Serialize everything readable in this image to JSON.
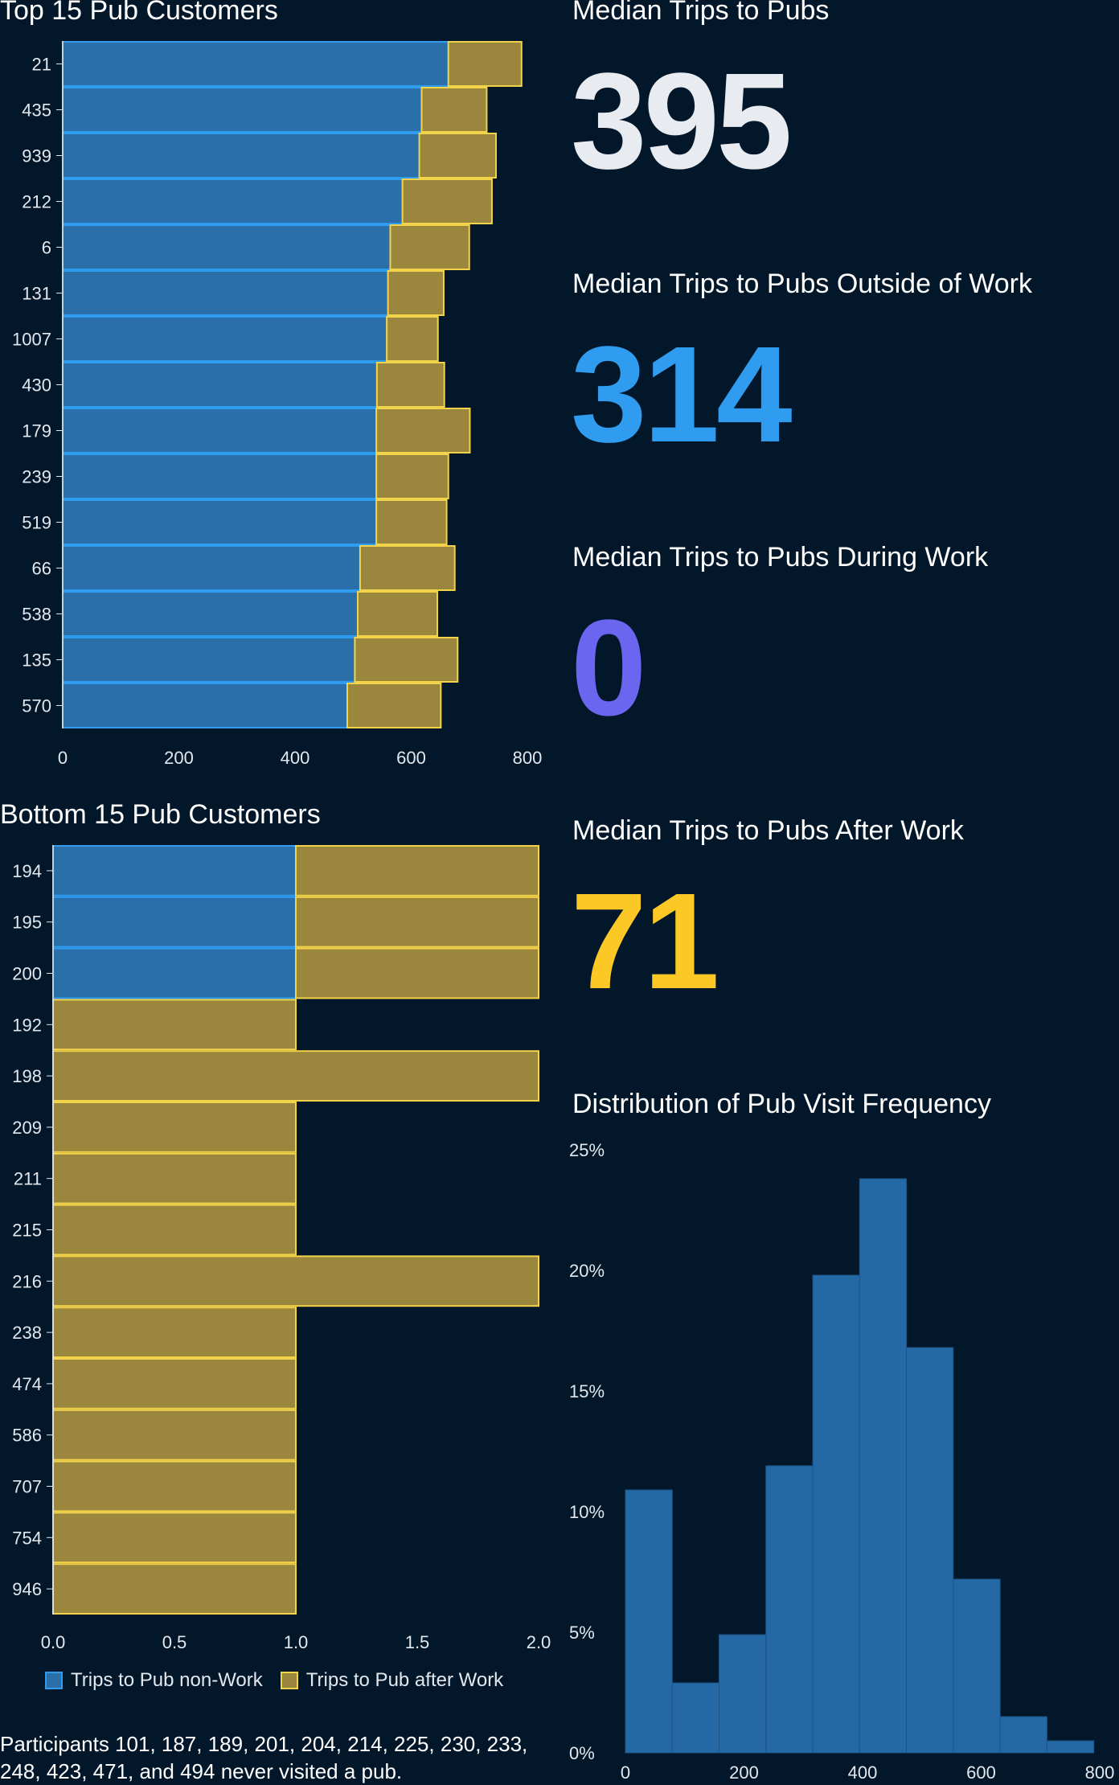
{
  "top_title": "Top 15 Pub Customers",
  "bottom_title": "Bottom 15 Pub Customers",
  "stats": [
    {
      "label": "Median Trips to Pubs",
      "value": "395",
      "color": "#e8ebef"
    },
    {
      "label": "Median Trips to Pubs Outside of Work",
      "value": "314",
      "color": "#2f9cf0"
    },
    {
      "label": "Median Trips to Pubs During Work",
      "value": "0",
      "color": "#6a66f0"
    },
    {
      "label": "Median Trips to Pubs After Work",
      "value": "71",
      "color": "#fcc825"
    }
  ],
  "hist_title": "Distribution of Pub Visit Frequency",
  "legend": {
    "nonwork": "Trips to Pub non-Work",
    "afterwork": "Trips to Pub after Work"
  },
  "note": "Participants 101, 187, 189, 201, 204, 214, 225, 230, 233, 248, 423, 471, and 494 never visited a pub.",
  "colors": {
    "blue": "#2a6faa",
    "blue_edge": "#2f9cf0",
    "gold": "#9a863d",
    "gold_edge": "#f2d34a",
    "hist": "#2469a5"
  },
  "chart_data": [
    {
      "type": "bar",
      "orientation": "horizontal",
      "stacked": true,
      "title": "Top 15 Pub Customers",
      "categories": [
        "21",
        "435",
        "939",
        "212",
        "6",
        "131",
        "1007",
        "430",
        "179",
        "239",
        "519",
        "66",
        "538",
        "135",
        "570"
      ],
      "series": [
        {
          "name": "Trips to Pub non-Work",
          "values": [
            664,
            618,
            614,
            585,
            564,
            560,
            558,
            541,
            540,
            540,
            540,
            512,
            508,
            503,
            490
          ]
        },
        {
          "name": "Trips to Pub after Work",
          "values": [
            126,
            112,
            132,
            154,
            136,
            96,
            88,
            116,
            161,
            124,
            121,
            163,
            137,
            177,
            161
          ]
        }
      ],
      "xlim": [
        0,
        800
      ],
      "xticks": [
        0,
        200,
        400,
        600,
        800
      ]
    },
    {
      "type": "bar",
      "orientation": "horizontal",
      "stacked": true,
      "title": "Bottom 15 Pub Customers",
      "categories": [
        "194",
        "195",
        "200",
        "192",
        "198",
        "209",
        "211",
        "215",
        "216",
        "238",
        "474",
        "586",
        "707",
        "754",
        "946"
      ],
      "series": [
        {
          "name": "Trips to Pub non-Work",
          "values": [
            1,
            1,
            1,
            0,
            0,
            0,
            0,
            0,
            0,
            0,
            0,
            0,
            0,
            0,
            0
          ]
        },
        {
          "name": "Trips to Pub after Work",
          "values": [
            1,
            1,
            1,
            1,
            2,
            1,
            1,
            1,
            2,
            1,
            1,
            1,
            1,
            1,
            1
          ]
        }
      ],
      "xlim": [
        0,
        2
      ],
      "xticks": [
        "0.0",
        "0.5",
        "1.0",
        "1.5",
        "2.0"
      ],
      "legend": "bottom-left"
    },
    {
      "type": "bar",
      "title": "Distribution of Pub Visit Frequency",
      "bin_edges": [
        0,
        79,
        158,
        237,
        316,
        395,
        474,
        553,
        632,
        711,
        790
      ],
      "values": [
        10.9,
        2.9,
        4.9,
        11.9,
        19.8,
        23.8,
        16.8,
        7.2,
        1.5,
        0.5
      ],
      "xlim": [
        0,
        800
      ],
      "ylim": [
        0,
        25
      ],
      "xticks": [
        0,
        200,
        400,
        600,
        800
      ],
      "yticks": [
        "0%",
        "5%",
        "10%",
        "15%",
        "20%",
        "25%"
      ]
    }
  ]
}
